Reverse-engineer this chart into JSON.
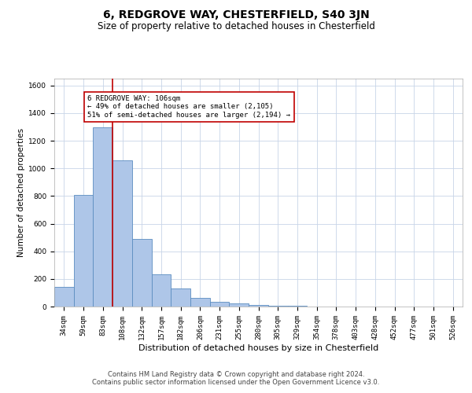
{
  "title": "6, REDGROVE WAY, CHESTERFIELD, S40 3JN",
  "subtitle": "Size of property relative to detached houses in Chesterfield",
  "xlabel": "Distribution of detached houses by size in Chesterfield",
  "ylabel": "Number of detached properties",
  "categories": [
    "34sqm",
    "59sqm",
    "83sqm",
    "108sqm",
    "132sqm",
    "157sqm",
    "182sqm",
    "206sqm",
    "231sqm",
    "255sqm",
    "280sqm",
    "305sqm",
    "329sqm",
    "354sqm",
    "378sqm",
    "403sqm",
    "428sqm",
    "452sqm",
    "477sqm",
    "501sqm",
    "526sqm"
  ],
  "values": [
    140,
    810,
    1300,
    1060,
    490,
    235,
    130,
    65,
    35,
    20,
    10,
    5,
    3,
    2,
    1,
    1,
    0,
    0,
    0,
    0,
    0
  ],
  "bar_color": "#aec6e8",
  "bar_edge_color": "#5b8dc0",
  "vline_x_index": 3,
  "vline_color": "#c00000",
  "annotation_text": "6 REDGROVE WAY: 106sqm\n← 49% of detached houses are smaller (2,105)\n51% of semi-detached houses are larger (2,194) →",
  "annotation_box_color": "#ffffff",
  "annotation_box_edge_color": "#c00000",
  "ylim": [
    0,
    1650
  ],
  "yticks": [
    0,
    200,
    400,
    600,
    800,
    1000,
    1200,
    1400,
    1600
  ],
  "footer1": "Contains HM Land Registry data © Crown copyright and database right 2024.",
  "footer2": "Contains public sector information licensed under the Open Government Licence v3.0.",
  "bg_color": "#ffffff",
  "grid_color": "#c8d4e8",
  "title_fontsize": 10,
  "subtitle_fontsize": 8.5,
  "xlabel_fontsize": 8,
  "ylabel_fontsize": 7.5,
  "tick_fontsize": 6.5,
  "annotation_fontsize": 6.5,
  "footer_fontsize": 6
}
